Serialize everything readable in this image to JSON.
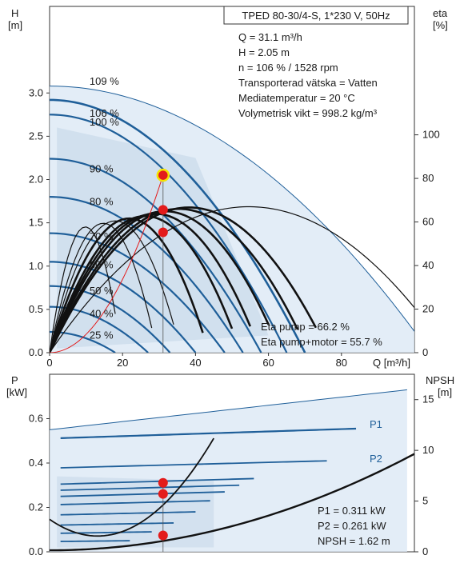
{
  "header": {
    "title": "TPED 80-30/4-S, 1*230 V, 50Hz"
  },
  "info": [
    "Q = 31.1 m³/h",
    "H = 2.05 m",
    "n = 106 % / 1528 rpm",
    "Transporterad vätska = Vatten",
    "Mediatemperatur = 20 °C",
    "Volymetrisk vikt = 998.2 kg/m³"
  ],
  "eta_info": [
    "Eta pump = 66.2 %",
    "Eta pump+motor = 55.7 %"
  ],
  "power_info": [
    "P1 = 0.311 kW",
    "P2 = 0.261 kW",
    "NPSH = 1.62 m"
  ],
  "colors": {
    "curve": "#1f5f99",
    "envelope": "#dce9f5",
    "envelope_inner": "#c3d6e8",
    "eta": "#111111",
    "marker": "#e31b1b",
    "duty_ring": "#f5e400"
  },
  "chart_data": [
    {
      "type": "line",
      "panel": "head",
      "ylabel_top": "H",
      "yunit": "[m]",
      "ylabel_right_top": "eta",
      "yunit_right": "[%]",
      "xlabel": "Q [m³/h]",
      "xlim": [
        0,
        100
      ],
      "ylim": [
        0,
        3.0
      ],
      "yticks": [
        "0.0",
        "0.5",
        "1.0",
        "1.5",
        "2.0",
        "2.5",
        "3.0"
      ],
      "xticks": [
        "0",
        "20",
        "40",
        "60",
        "80"
      ],
      "ytick_vals": [
        0,
        0.5,
        1.0,
        1.5,
        2.0,
        2.5,
        3.0
      ],
      "xtick_vals": [
        0,
        20,
        40,
        60,
        80
      ],
      "eta_ticks": [
        "0",
        "20",
        "40",
        "60",
        "80",
        "100"
      ],
      "eta_tick_vals": [
        0,
        20,
        40,
        60,
        80,
        100
      ],
      "speed_labels": [
        {
          "text": "109 %",
          "q": 7,
          "h": 3.13
        },
        {
          "text": "106 %",
          "q": 7,
          "h": 2.76
        },
        {
          "text": "100 %",
          "q": 7,
          "h": 2.66
        },
        {
          "text": "90 %",
          "q": 7,
          "h": 2.12
        },
        {
          "text": "80 %",
          "q": 7,
          "h": 1.74
        },
        {
          "text": "70 %",
          "q": 7,
          "h": 1.34
        },
        {
          "text": "60 %",
          "q": 7,
          "h": 1.01
        },
        {
          "text": "50 %",
          "q": 7,
          "h": 0.71
        },
        {
          "text": "40 %",
          "q": 7,
          "h": 0.45
        },
        {
          "text": "25 %",
          "q": 7,
          "h": 0.2
        }
      ],
      "series": [
        {
          "speed": 109,
          "h0": 3.08,
          "qmax": 100
        },
        {
          "speed": 106,
          "h0": 2.92,
          "qmax": 70
        },
        {
          "speed": 100,
          "h0": 2.75,
          "qmax": 65
        },
        {
          "speed": 90,
          "h0": 2.24,
          "qmax": 58
        },
        {
          "speed": 80,
          "h0": 1.8,
          "qmax": 53
        },
        {
          "speed": 70,
          "h0": 1.38,
          "qmax": 48
        },
        {
          "speed": 60,
          "h0": 1.05,
          "qmax": 40
        },
        {
          "speed": 50,
          "h0": 0.77,
          "qmax": 33
        },
        {
          "speed": 40,
          "h0": 0.53,
          "qmax": 27
        },
        {
          "speed": 25,
          "h0": 0.24,
          "qmax": 18
        }
      ],
      "duty_point": {
        "q": 31.1,
        "h": 2.05
      },
      "eta_points": [
        {
          "q": 31.1,
          "h": 1.65
        },
        {
          "q": 31.1,
          "h": 1.39
        }
      ]
    },
    {
      "type": "line",
      "panel": "power",
      "ylabel_top": "P",
      "yunit": "[kW]",
      "ylabel_right_top": "NPSH",
      "yunit_right": "[m]",
      "xlim": [
        0,
        100
      ],
      "ylim": [
        0,
        0.7
      ],
      "yticks": [
        "0.0",
        "0.2",
        "0.4",
        "0.6"
      ],
      "ytick_vals": [
        0,
        0.2,
        0.4,
        0.6
      ],
      "npsh_ticks": [
        "0",
        "5",
        "10",
        "15"
      ],
      "npsh_tick_vals": [
        0,
        5,
        10,
        15
      ],
      "series_labels": [
        "P1",
        "P2"
      ],
      "p1_point": {
        "q": 31.1,
        "p": 0.311
      },
      "p2_point": {
        "q": 31.1,
        "p": 0.261
      },
      "npsh_point": {
        "q": 31.1,
        "npsh": 1.62
      }
    }
  ]
}
